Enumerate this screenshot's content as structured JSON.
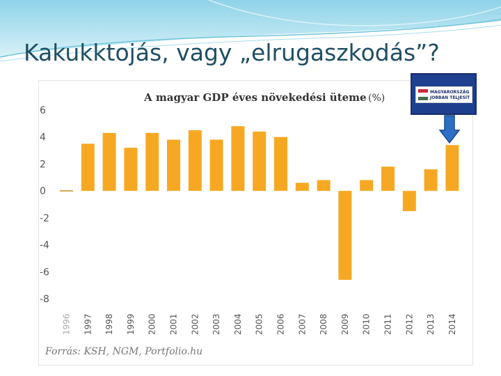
{
  "slide": {
    "title": "Kakukktojás, vagy „elrugaszkodás”?"
  },
  "badge": {
    "line1": "MAGYARORSZÁG",
    "line2": "JOBBAN TELJESÍT",
    "flag_colors": [
      "#cd2a3e",
      "#ffffff",
      "#436f4d"
    ]
  },
  "chart_data": {
    "type": "bar",
    "title": "A magyar GDP éves növekedési üteme",
    "unit": "(%)",
    "source": "Forrás: KSH, NGM, Portfolio.hu",
    "categories": [
      "1996",
      "1997",
      "1998",
      "1999",
      "2000",
      "2001",
      "2002",
      "2003",
      "2004",
      "2005",
      "2006",
      "2007",
      "2008",
      "2009",
      "2010",
      "2011",
      "2012",
      "2013",
      "2014"
    ],
    "values": [
      0.0,
      3.5,
      4.3,
      3.2,
      4.3,
      3.8,
      4.5,
      3.8,
      4.8,
      4.4,
      4.0,
      0.6,
      0.8,
      -6.6,
      0.8,
      1.8,
      -1.5,
      1.6,
      3.4
    ],
    "yticks": [
      6,
      4,
      2,
      0,
      -2,
      -4,
      -6,
      -8
    ],
    "ylim": [
      -8,
      6
    ],
    "bar_color": "#f7a823",
    "grid": false
  }
}
